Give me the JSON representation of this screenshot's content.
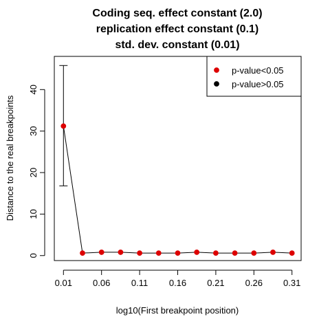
{
  "chart_data": {
    "type": "line",
    "title_lines": [
      "Coding seq. effect constant (2.0)",
      "replication effect constant (0.1)",
      "std. dev. constant (0.01)"
    ],
    "xlabel": "log10(First breakpoint position)",
    "ylabel": "Distance to the real breakpoints",
    "x": [
      0.01,
      0.035,
      0.06,
      0.085,
      0.11,
      0.135,
      0.16,
      0.185,
      0.21,
      0.235,
      0.26,
      0.285,
      0.31
    ],
    "y": [
      31.2,
      0.6,
      0.8,
      0.8,
      0.6,
      0.6,
      0.6,
      0.8,
      0.6,
      0.6,
      0.6,
      0.8,
      0.6
    ],
    "point_colors": [
      "#dd0000",
      "#dd0000",
      "#dd0000",
      "#dd0000",
      "#dd0000",
      "#dd0000",
      "#dd0000",
      "#dd0000",
      "#dd0000",
      "#dd0000",
      "#dd0000",
      "#dd0000",
      "#dd0000"
    ],
    "error_bars": [
      {
        "x": 0.01,
        "low": 16.8,
        "high": 45.8
      }
    ],
    "x_ticks": [
      0.01,
      0.06,
      0.11,
      0.16,
      0.21,
      0.26,
      0.31
    ],
    "x_tick_labels": [
      "0.01",
      "0.06",
      "0.11",
      "0.16",
      "0.21",
      "0.26",
      "0.31"
    ],
    "y_ticks": [
      0,
      10,
      20,
      30,
      40
    ],
    "y_tick_labels": [
      "0",
      "10",
      "20",
      "30",
      "40"
    ],
    "xlim": [
      -0.002,
      0.322
    ],
    "ylim": [
      -1.2,
      48.0
    ],
    "grid": false,
    "legend": {
      "position": "top-right",
      "entries": [
        {
          "label": "p-value<0.05",
          "color": "#dd0000"
        },
        {
          "label": "p-value>0.05",
          "color": "#000000"
        }
      ]
    }
  }
}
